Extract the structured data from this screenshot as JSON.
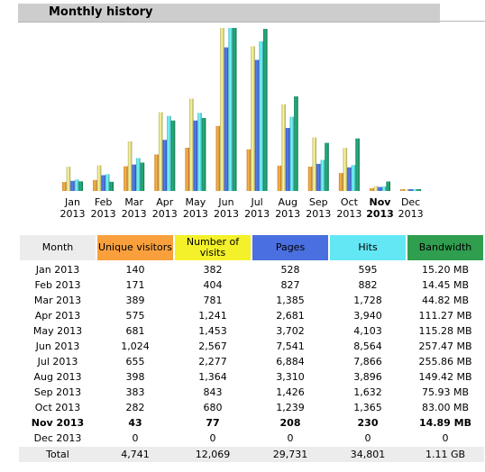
{
  "title": "Monthly history",
  "colors": {
    "unique_visitors": "#f9a03d",
    "visits": "#ece08a",
    "pages": "#4a6fe0",
    "hits": "#64e7f5",
    "bandwidth": "#1f9e6f"
  },
  "chart_data": {
    "type": "bar",
    "categories": [
      {
        "month": "Jan",
        "year": "2013"
      },
      {
        "month": "Feb",
        "year": "2013"
      },
      {
        "month": "Mar",
        "year": "2013"
      },
      {
        "month": "Apr",
        "year": "2013"
      },
      {
        "month": "May",
        "year": "2013"
      },
      {
        "month": "Jun",
        "year": "2013"
      },
      {
        "month": "Jul",
        "year": "2013"
      },
      {
        "month": "Aug",
        "year": "2013"
      },
      {
        "month": "Sep",
        "year": "2013"
      },
      {
        "month": "Oct",
        "year": "2013"
      },
      {
        "month": "Nov",
        "year": "2013"
      },
      {
        "month": "Dec",
        "year": "2013"
      }
    ],
    "current_index": 10,
    "series": [
      {
        "key": "unique_visitors",
        "values": [
          140,
          171,
          389,
          575,
          681,
          1024,
          655,
          398,
          383,
          282,
          43,
          0
        ]
      },
      {
        "key": "visits",
        "values": [
          382,
          404,
          781,
          1241,
          1453,
          2567,
          2277,
          1364,
          843,
          680,
          77,
          0
        ]
      },
      {
        "key": "pages",
        "values": [
          528,
          827,
          1385,
          2681,
          3702,
          7541,
          6884,
          3310,
          1426,
          1239,
          208,
          0
        ]
      },
      {
        "key": "hits",
        "values": [
          595,
          882,
          1728,
          3940,
          4103,
          8564,
          7866,
          3896,
          1632,
          1365,
          230,
          0
        ]
      },
      {
        "key": "bandwidth",
        "values": [
          15.2,
          14.45,
          44.82,
          111.27,
          115.28,
          257.47,
          255.86,
          149.42,
          75.93,
          83.0,
          14.89,
          0
        ]
      }
    ],
    "groups": [
      {
        "series": [
          "unique_visitors",
          "visits"
        ],
        "max": 2567
      },
      {
        "series": [
          "pages",
          "hits"
        ],
        "max": 8564
      },
      {
        "series": [
          "bandwidth"
        ],
        "max": 257.47
      }
    ]
  },
  "table": {
    "headers": {
      "month": "Month",
      "unique_visitors": "Unique visitors",
      "visits": "Number of visits",
      "pages": "Pages",
      "hits": "Hits",
      "bandwidth": "Bandwidth"
    },
    "rows": [
      {
        "month": "Jan 2013",
        "uv": "140",
        "nv": "382",
        "pages": "528",
        "hits": "595",
        "bw": "15.20 MB"
      },
      {
        "month": "Feb 2013",
        "uv": "171",
        "nv": "404",
        "pages": "827",
        "hits": "882",
        "bw": "14.45 MB"
      },
      {
        "month": "Mar 2013",
        "uv": "389",
        "nv": "781",
        "pages": "1,385",
        "hits": "1,728",
        "bw": "44.82 MB"
      },
      {
        "month": "Apr 2013",
        "uv": "575",
        "nv": "1,241",
        "pages": "2,681",
        "hits": "3,940",
        "bw": "111.27 MB"
      },
      {
        "month": "May 2013",
        "uv": "681",
        "nv": "1,453",
        "pages": "3,702",
        "hits": "4,103",
        "bw": "115.28 MB"
      },
      {
        "month": "Jun 2013",
        "uv": "1,024",
        "nv": "2,567",
        "pages": "7,541",
        "hits": "8,564",
        "bw": "257.47 MB"
      },
      {
        "month": "Jul 2013",
        "uv": "655",
        "nv": "2,277",
        "pages": "6,884",
        "hits": "7,866",
        "bw": "255.86 MB"
      },
      {
        "month": "Aug 2013",
        "uv": "398",
        "nv": "1,364",
        "pages": "3,310",
        "hits": "3,896",
        "bw": "149.42 MB"
      },
      {
        "month": "Sep 2013",
        "uv": "383",
        "nv": "843",
        "pages": "1,426",
        "hits": "1,632",
        "bw": "75.93 MB"
      },
      {
        "month": "Oct 2013",
        "uv": "282",
        "nv": "680",
        "pages": "1,239",
        "hits": "1,365",
        "bw": "83.00 MB"
      },
      {
        "month": "Nov 2013",
        "uv": "43",
        "nv": "77",
        "pages": "208",
        "hits": "230",
        "bw": "14.89 MB",
        "current": true
      },
      {
        "month": "Dec 2013",
        "uv": "0",
        "nv": "0",
        "pages": "0",
        "hits": "0",
        "bw": "0"
      }
    ],
    "total": {
      "month": "Total",
      "uv": "4,741",
      "nv": "12,069",
      "pages": "29,731",
      "hits": "34,801",
      "bw": "1.11 GB"
    }
  }
}
